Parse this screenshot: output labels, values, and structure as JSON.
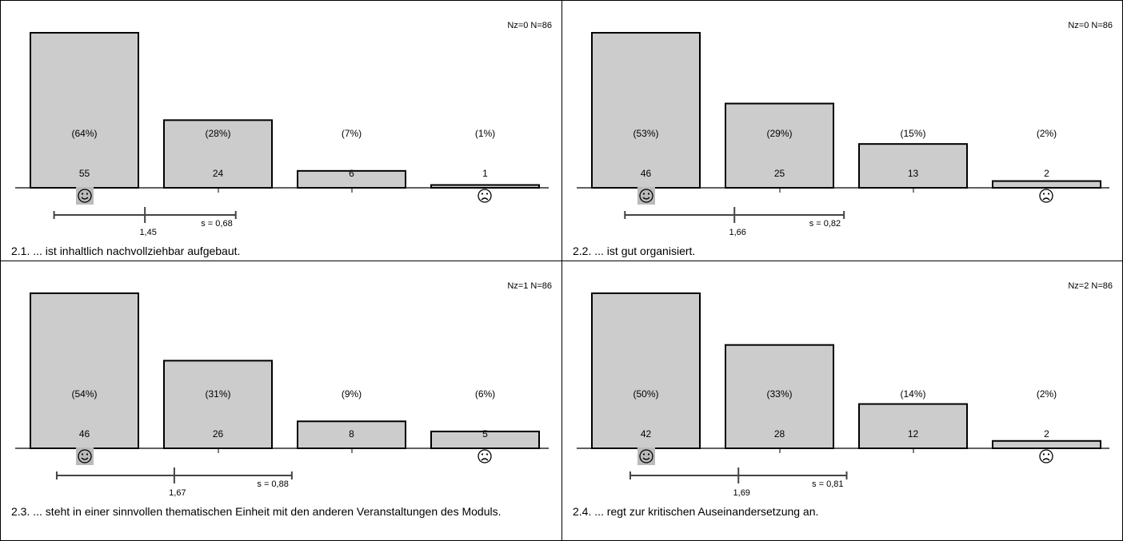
{
  "colors": {
    "bar_fill": "#cccccc",
    "bar_stroke": "#000000",
    "axis": "#000000",
    "sd_line": "#444444",
    "face_bg": "#bbbbbb"
  },
  "icons": {
    "good": "smiley-face-icon",
    "bad": "frowny-face-icon"
  },
  "chart_data": [
    {
      "type": "bar",
      "question": "2.1. ... ist inhaltlich nachvollziehbar aufgebaut.",
      "nz_label": "Nz=0",
      "n_label": "N=86",
      "categories": [
        "1",
        "2",
        "3",
        "4"
      ],
      "values": [
        55,
        24,
        6,
        1
      ],
      "percent_labels": [
        "(64%)",
        "(28%)",
        "(7%)",
        "(1%)"
      ],
      "count_labels": [
        "55",
        "24",
        "6",
        "1"
      ],
      "mean": 1.45,
      "mean_label": "1,45",
      "sd": 0.68,
      "sd_label": "s = 0,68",
      "ylim": [
        0,
        55
      ]
    },
    {
      "type": "bar",
      "question": "2.2. ... ist gut organisiert.",
      "nz_label": "Nz=0",
      "n_label": "N=86",
      "categories": [
        "1",
        "2",
        "3",
        "4"
      ],
      "values": [
        46,
        25,
        13,
        2
      ],
      "percent_labels": [
        "(53%)",
        "(29%)",
        "(15%)",
        "(2%)"
      ],
      "count_labels": [
        "46",
        "25",
        "13",
        "2"
      ],
      "mean": 1.66,
      "mean_label": "1,66",
      "sd": 0.82,
      "sd_label": "s = 0,82",
      "ylim": [
        0,
        46
      ]
    },
    {
      "type": "bar",
      "question": "2.3. ... steht in einer sinnvollen thematischen Einheit mit den anderen Veranstaltungen des Moduls.",
      "nz_label": "Nz=1",
      "n_label": "N=86",
      "categories": [
        "1",
        "2",
        "3",
        "4"
      ],
      "values": [
        46,
        26,
        8,
        5
      ],
      "percent_labels": [
        "(54%)",
        "(31%)",
        "(9%)",
        "(6%)"
      ],
      "count_labels": [
        "46",
        "26",
        "8",
        "5"
      ],
      "mean": 1.67,
      "mean_label": "1,67",
      "sd": 0.88,
      "sd_label": "s = 0,88",
      "ylim": [
        0,
        46
      ]
    },
    {
      "type": "bar",
      "question": "2.4. ... regt zur kritischen Auseinandersetzung an.",
      "nz_label": "Nz=2",
      "n_label": "N=86",
      "categories": [
        "1",
        "2",
        "3",
        "4"
      ],
      "values": [
        42,
        28,
        12,
        2
      ],
      "percent_labels": [
        "(50%)",
        "(33%)",
        "(14%)",
        "(2%)"
      ],
      "count_labels": [
        "42",
        "28",
        "12",
        "2"
      ],
      "mean": 1.69,
      "mean_label": "1,69",
      "sd": 0.81,
      "sd_label": "s = 0,81",
      "ylim": [
        0,
        42
      ]
    }
  ]
}
